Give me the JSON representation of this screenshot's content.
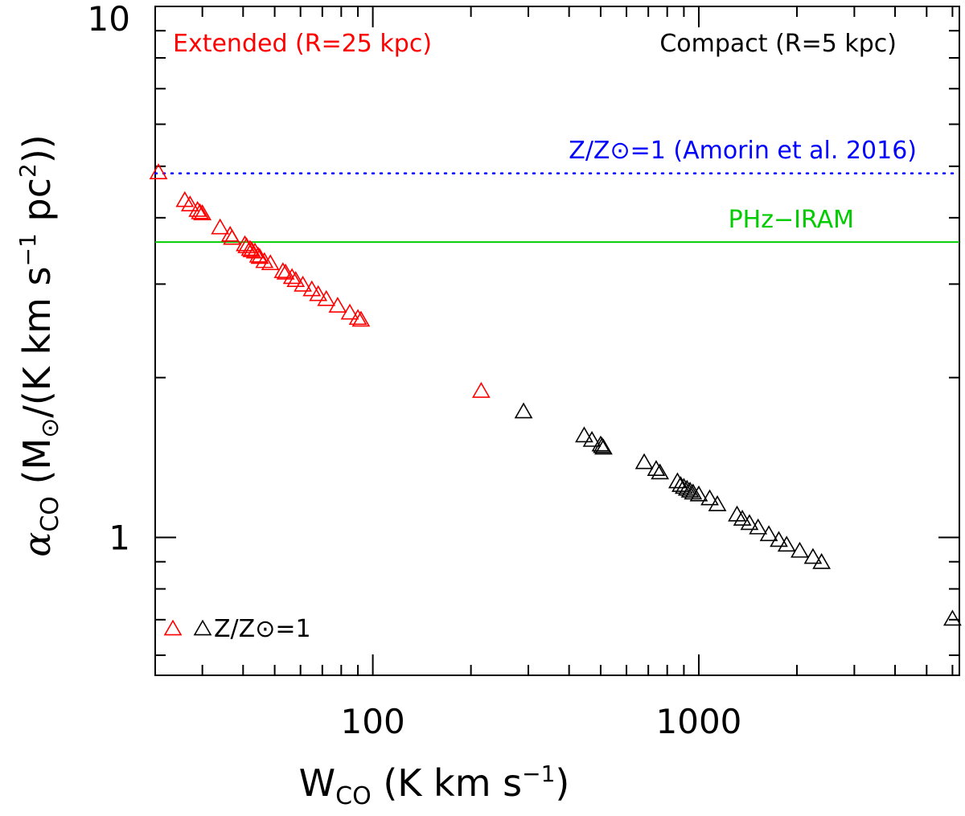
{
  "chart_data": {
    "type": "scatter",
    "xscale": "log",
    "yscale": "log",
    "xlim": [
      21.5,
      6300
    ],
    "ylim": [
      0.55,
      10
    ],
    "xlabel": {
      "main": "W",
      "sub": "CO",
      "rest": " (K km s",
      "sup": "−1",
      "close": ")"
    },
    "ylabel": {
      "alpha": "α",
      "sub": "CO",
      "open": " (M",
      "sun": "⊙",
      "mid": "/(K km s",
      "sup1": "−1",
      "mid2": " pc",
      "sup2": "2",
      "close": "))"
    },
    "x_ticks": [
      {
        "value": 100,
        "label": "100"
      },
      {
        "value": 1000,
        "label": "1000"
      }
    ],
    "y_ticks": [
      {
        "value": 1,
        "label": "1"
      },
      {
        "value": 10,
        "label": "10"
      }
    ],
    "annotations": {
      "extended": "Extended (R=25 kpc)",
      "compact": "Compact (R=5 kpc)",
      "amorin": "Z/Z⊙=1 (Amorin et al. 2016)",
      "phz": "PHz−IRAM",
      "legend_marker_text": "Z/Z⊙=1"
    },
    "colors": {
      "extended": "#ff0000",
      "compact": "#000000",
      "amorin": "#0000ff",
      "phz": "#00cc00"
    },
    "reference_lines": [
      {
        "name": "Z/Z⊙=1 (Amorin et al. 2016)",
        "y": 4.85,
        "style": "dotted",
        "color": "#0000ff"
      },
      {
        "name": "PHz−IRAM",
        "y": 3.6,
        "style": "solid",
        "color": "#00cc00"
      }
    ],
    "series": [
      {
        "name": "Extended (R=25 kpc)",
        "color": "#ff0000",
        "marker": "open-triangle",
        "points": [
          [
            22,
            4.85
          ],
          [
            26.5,
            4.3
          ],
          [
            27.5,
            4.22
          ],
          [
            29,
            4.12
          ],
          [
            29.5,
            4.08
          ],
          [
            30,
            4.06
          ],
          [
            34,
            3.82
          ],
          [
            36.5,
            3.7
          ],
          [
            37,
            3.65
          ],
          [
            40.5,
            3.55
          ],
          [
            41,
            3.52
          ],
          [
            42,
            3.48
          ],
          [
            42.5,
            3.46
          ],
          [
            43.5,
            3.44
          ],
          [
            44.5,
            3.38
          ],
          [
            45,
            3.36
          ],
          [
            46.5,
            3.3
          ],
          [
            48.5,
            3.27
          ],
          [
            53,
            3.16
          ],
          [
            54,
            3.14
          ],
          [
            56.5,
            3.08
          ],
          [
            58,
            3.04
          ],
          [
            61,
            2.98
          ],
          [
            65,
            2.92
          ],
          [
            68,
            2.86
          ],
          [
            72,
            2.8
          ],
          [
            78,
            2.72
          ],
          [
            85,
            2.64
          ],
          [
            90,
            2.58
          ],
          [
            92,
            2.56
          ],
          [
            215,
            1.88
          ]
        ]
      },
      {
        "name": "Compact (R=5 kpc)",
        "color": "#000000",
        "marker": "open-triangle",
        "points": [
          [
            290,
            1.72
          ],
          [
            445,
            1.55
          ],
          [
            470,
            1.52
          ],
          [
            500,
            1.49
          ],
          [
            505,
            1.48
          ],
          [
            510,
            1.47
          ],
          [
            680,
            1.38
          ],
          [
            740,
            1.34
          ],
          [
            760,
            1.32
          ],
          [
            860,
            1.27
          ],
          [
            880,
            1.25
          ],
          [
            900,
            1.24
          ],
          [
            920,
            1.23
          ],
          [
            940,
            1.22
          ],
          [
            960,
            1.21
          ],
          [
            1000,
            1.2
          ],
          [
            1080,
            1.18
          ],
          [
            1140,
            1.15
          ],
          [
            1310,
            1.1
          ],
          [
            1360,
            1.08
          ],
          [
            1430,
            1.06
          ],
          [
            1520,
            1.04
          ],
          [
            1640,
            1.01
          ],
          [
            1760,
            0.985
          ],
          [
            1860,
            0.965
          ],
          [
            2040,
            0.94
          ],
          [
            2240,
            0.915
          ],
          [
            2380,
            0.895
          ],
          [
            6000,
            0.7
          ]
        ]
      }
    ],
    "legend": [
      {
        "marker": "open-triangle",
        "color": "#ff0000"
      },
      {
        "marker": "open-triangle",
        "color": "#000000",
        "text_key": "legend_marker_text"
      }
    ]
  }
}
